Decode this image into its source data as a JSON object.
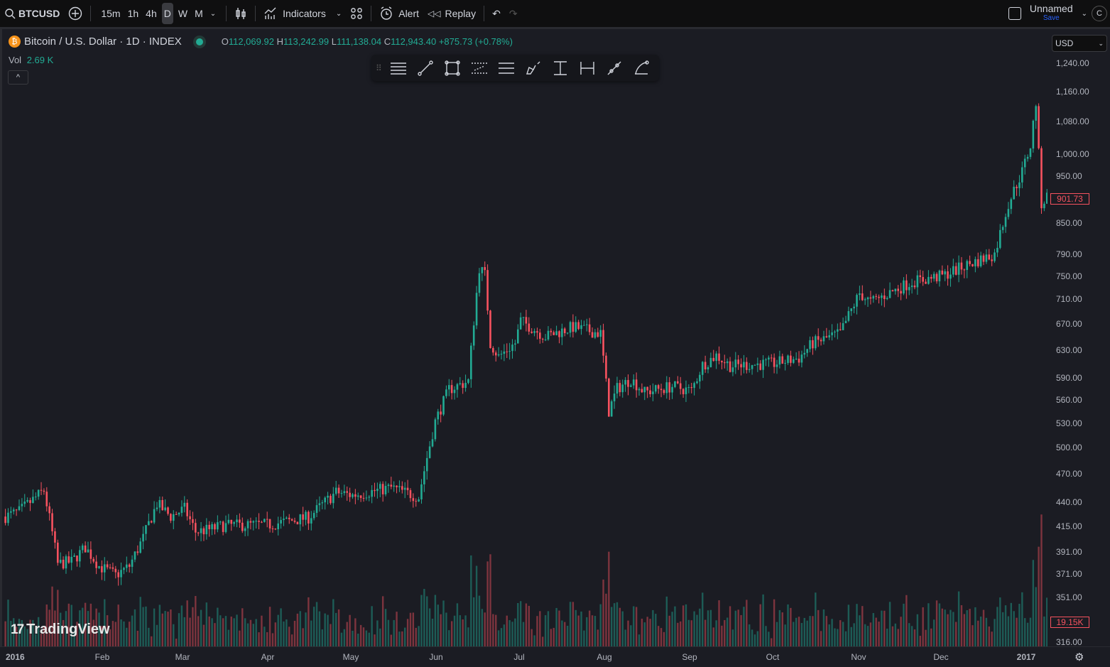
{
  "topbar": {
    "symbol": "BTCUSD",
    "timeframes": [
      "15m",
      "1h",
      "4h",
      "D",
      "W",
      "M"
    ],
    "active_timeframe": "D",
    "indicators": "Indicators",
    "alert": "Alert",
    "replay": "Replay",
    "layout_name": "Unnamed",
    "save": "Save",
    "avatar": "C"
  },
  "legend": {
    "title": "Bitcoin / U.S. Dollar · 1D · INDEX",
    "o_label": "O",
    "open": "112,069.92",
    "h_label": "H",
    "high": "113,242.99",
    "l_label": "L",
    "low": "111,138.04",
    "c_label": "C",
    "close": "112,943.40",
    "change": "+875.73 (+0.78%)",
    "vol_label": "Vol",
    "vol": "2.69 K",
    "collapse": "^"
  },
  "currency": "USD",
  "price_axis": {
    "scale": "log",
    "ticks": [
      "1,240.00",
      "1,160.00",
      "1,080.00",
      "1,000.00",
      "950.00",
      "850.00",
      "790.00",
      "750.00",
      "710.00",
      "670.00",
      "630.00",
      "590.00",
      "560.00",
      "530.00",
      "500.00",
      "470.00",
      "440.00",
      "415.00",
      "391.00",
      "371.00",
      "351.00",
      "316.00"
    ],
    "last_price": "901.73",
    "last_volume": "19.15K"
  },
  "time_axis": {
    "ticks": [
      "2016",
      "Feb",
      "Mar",
      "Apr",
      "May",
      "Jun",
      "Jul",
      "Aug",
      "Sep",
      "Oct",
      "Nov",
      "Dec",
      "2017"
    ]
  },
  "watermark": "TradingView",
  "colors": {
    "up": "#22ab94",
    "down": "#f7525f",
    "background": "#1b1c23"
  },
  "drawing_tools": [
    "horizontal-lines-icon",
    "trend-line-icon",
    "rectangle-icon",
    "parallel-channel-icon",
    "regression-channel-icon",
    "brush-icon",
    "price-range-icon",
    "date-range-icon",
    "ray-icon",
    "curve-icon"
  ],
  "price_path": [
    [
      "2015-12-27",
      425
    ],
    [
      "2016-01-01",
      430
    ],
    [
      "2016-01-10",
      452
    ],
    [
      "2016-01-15",
      380
    ],
    [
      "2016-01-20",
      382
    ],
    [
      "2016-01-25",
      395
    ],
    [
      "2016-01-30",
      378
    ],
    [
      "2016-02-05",
      370
    ],
    [
      "2016-02-10",
      378
    ],
    [
      "2016-02-15",
      404
    ],
    [
      "2016-02-20",
      438
    ],
    [
      "2016-02-25",
      425
    ],
    [
      "2016-03-01",
      433
    ],
    [
      "2016-03-05",
      410
    ],
    [
      "2016-03-10",
      412
    ],
    [
      "2016-03-15",
      416
    ],
    [
      "2016-04-01",
      417
    ],
    [
      "2016-04-15",
      424
    ],
    [
      "2016-04-25",
      450
    ],
    [
      "2016-05-01",
      447
    ],
    [
      "2016-05-15",
      455
    ],
    [
      "2016-05-25",
      445
    ],
    [
      "2016-05-31",
      532
    ],
    [
      "2016-06-05",
      574
    ],
    [
      "2016-06-12",
      585
    ],
    [
      "2016-06-16",
      765
    ],
    [
      "2016-06-18",
      752
    ],
    [
      "2016-06-20",
      640
    ],
    [
      "2016-06-23",
      620
    ],
    [
      "2016-06-29",
      640
    ],
    [
      "2016-07-01",
      675
    ],
    [
      "2016-07-10",
      650
    ],
    [
      "2016-07-20",
      665
    ],
    [
      "2016-07-30",
      655
    ],
    [
      "2016-08-02",
      545
    ],
    [
      "2016-08-05",
      575
    ],
    [
      "2016-08-10",
      588
    ],
    [
      "2016-08-15",
      570
    ],
    [
      "2016-08-25",
      578
    ],
    [
      "2016-09-01",
      572
    ],
    [
      "2016-09-05",
      608
    ],
    [
      "2016-09-10",
      622
    ],
    [
      "2016-09-15",
      607
    ],
    [
      "2016-10-01",
      610
    ],
    [
      "2016-10-10",
      618
    ],
    [
      "2016-10-15",
      640
    ],
    [
      "2016-10-25",
      655
    ],
    [
      "2016-11-01",
      720
    ],
    [
      "2016-11-05",
      705
    ],
    [
      "2016-11-20",
      740
    ],
    [
      "2016-12-01",
      750
    ],
    [
      "2016-12-10",
      770
    ],
    [
      "2016-12-20",
      790
    ],
    [
      "2016-12-25",
      890
    ],
    [
      "2016-12-30",
      960
    ],
    [
      "2017-01-02",
      1020
    ],
    [
      "2017-01-04",
      1130
    ],
    [
      "2017-01-05",
      1000
    ],
    [
      "2017-01-06",
      890
    ],
    [
      "2017-01-08",
      905
    ],
    [
      "2017-01-09",
      902
    ]
  ]
}
